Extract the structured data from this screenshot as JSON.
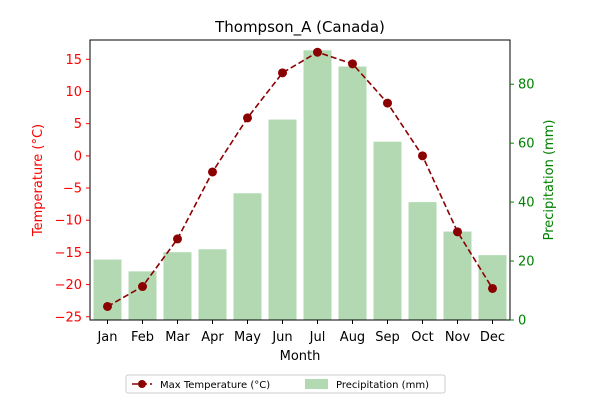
{
  "chart_data": {
    "type": "bar",
    "title": "Thompson_A (Canada)",
    "xlabel": "Month",
    "categories": [
      "Jan",
      "Feb",
      "Mar",
      "Apr",
      "May",
      "Jun",
      "Jul",
      "Aug",
      "Sep",
      "Oct",
      "Nov",
      "Dec"
    ],
    "y_left": {
      "label": "Temperature (°C)",
      "ylim": [
        -25.5,
        18.0
      ],
      "ticks": [
        -25,
        -20,
        -15,
        -10,
        -5,
        0,
        5,
        10,
        15
      ],
      "color": "#ff0000"
    },
    "y_right": {
      "label": "Precipitation (mm)",
      "ylim": [
        0,
        95
      ],
      "ticks": [
        0,
        20,
        40,
        60,
        80
      ],
      "color": "#008000"
    },
    "series": [
      {
        "name": "Max Temperature (°C)",
        "type": "line",
        "axis": "left",
        "color": "#8b0000",
        "values": [
          -23.4,
          -20.3,
          -12.9,
          -2.5,
          5.9,
          12.9,
          16.1,
          14.3,
          8.2,
          0.0,
          -11.8,
          -20.6
        ]
      },
      {
        "name": "Precipitation (mm)",
        "type": "bar",
        "axis": "right",
        "color": "#b2d9b2",
        "values": [
          20.5,
          16.5,
          23.0,
          24.0,
          43.0,
          68.0,
          91.5,
          86.0,
          60.5,
          40.0,
          30.0,
          22.0
        ]
      }
    ],
    "legend": {
      "placement": "bottom-center",
      "columns": 2
    },
    "grid": false
  }
}
